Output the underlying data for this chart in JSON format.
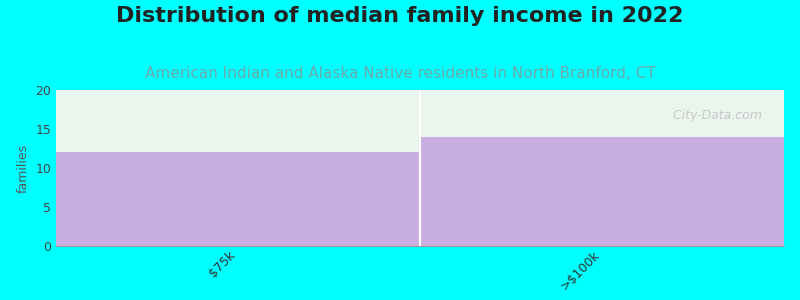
{
  "title": "Distribution of median family income in 2022",
  "subtitle": "American Indian and Alaska Native residents in North Branford, CT",
  "categories": [
    "$75k",
    ">$100k"
  ],
  "values": [
    12,
    14
  ],
  "bar_color": "#c9aee0",
  "background_color": "#00ffff",
  "plot_bg_color": "#eaf5ee",
  "ylabel": "families",
  "ylim": [
    0,
    20
  ],
  "yticks": [
    0,
    5,
    10,
    15,
    20
  ],
  "title_fontsize": 16,
  "subtitle_fontsize": 11,
  "subtitle_color": "#6aaaaa",
  "title_color": "#222222",
  "watermark": " City-Data.com",
  "watermark_color": "#c0c0c0",
  "divider_color": "#ffffff",
  "bottom_color": "#00ffff"
}
